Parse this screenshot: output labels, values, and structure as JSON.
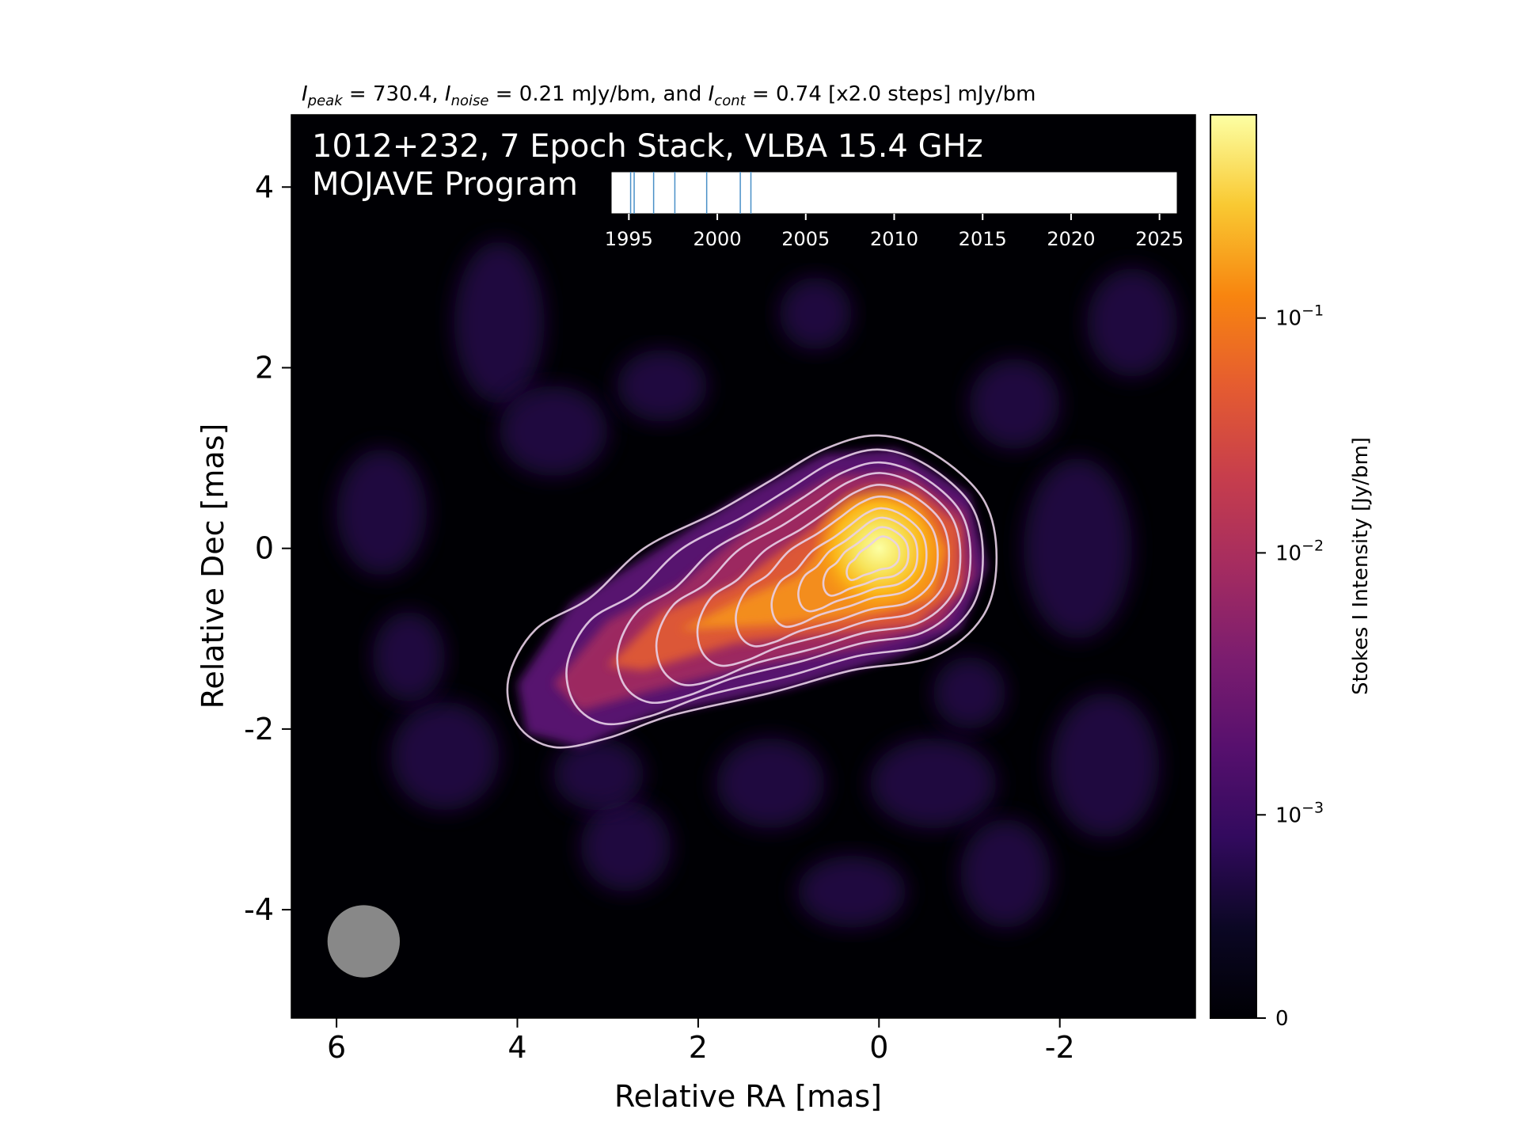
{
  "chart_data": {
    "type": "heatmap",
    "title_parts": {
      "peak_symbol": "I",
      "peak_sub": "peak",
      "peak_text": " = 730.4, ",
      "noise_symbol": "I",
      "noise_sub": "noise",
      "noise_text": " = 0.21 mJy/bm, and ",
      "cont_symbol": "I",
      "cont_sub": "cont",
      "cont_text": " = 0.74 [x2.0 steps] mJy/bm"
    },
    "overlay_title_line1": "1012+232, 7 Epoch Stack, VLBA 15.4 GHz",
    "overlay_title_line2": "MOJAVE Program",
    "xlabel": "Relative RA [mas]",
    "ylabel": "Relative Dec [mas]",
    "xlim": [
      6.5,
      -3.5
    ],
    "ylim": [
      -5.2,
      4.8
    ],
    "x_ticks": [
      6,
      4,
      2,
      0,
      -2
    ],
    "x_tick_labels": [
      "6",
      "4",
      "2",
      "0",
      "-2"
    ],
    "y_ticks": [
      4,
      2,
      0,
      -2,
      -4
    ],
    "y_tick_labels": [
      "4",
      "2",
      "0",
      "-2",
      "-4"
    ],
    "colorbar": {
      "label": "Stokes I Intensity [Jy/bm]",
      "colormap": "inferno",
      "scale": "log",
      "ticks": [
        {
          "base": "0",
          "exp": "",
          "frac": 0.0
        },
        {
          "base": "10",
          "exp": "−3",
          "frac": 0.225
        },
        {
          "base": "10",
          "exp": "−2",
          "frac": 0.515
        },
        {
          "base": "10",
          "exp": "−1",
          "frac": 0.775
        }
      ]
    },
    "epoch_timeline": {
      "xlim": [
        1994,
        2026
      ],
      "tick_values": [
        1995,
        2000,
        2005,
        2010,
        2015,
        2020,
        2025
      ],
      "tick_labels": [
        "1995",
        "2000",
        "2005",
        "2010",
        "2015",
        "2020",
        "2025"
      ],
      "epochs": [
        1995.1,
        1995.3,
        1996.4,
        1997.6,
        1999.4,
        2001.3,
        2001.9
      ],
      "epoch_color": "#4a90c8"
    },
    "beam": {
      "center": [
        5.7,
        -4.35
      ],
      "diameter_mas": 0.8,
      "color": "#888888"
    },
    "core": {
      "ra": 0.0,
      "dec": 0.0
    },
    "contour_levels_mJy": [
      0.74,
      1.48,
      2.96,
      5.92,
      11.84,
      23.68,
      47.36,
      94.72,
      189.44,
      378.88
    ],
    "contour_color": "#e8d0e8",
    "colors": {
      "background": "#000004",
      "core": "#fcffa4",
      "jet": "#e8602c",
      "faint": "#420a68"
    }
  }
}
